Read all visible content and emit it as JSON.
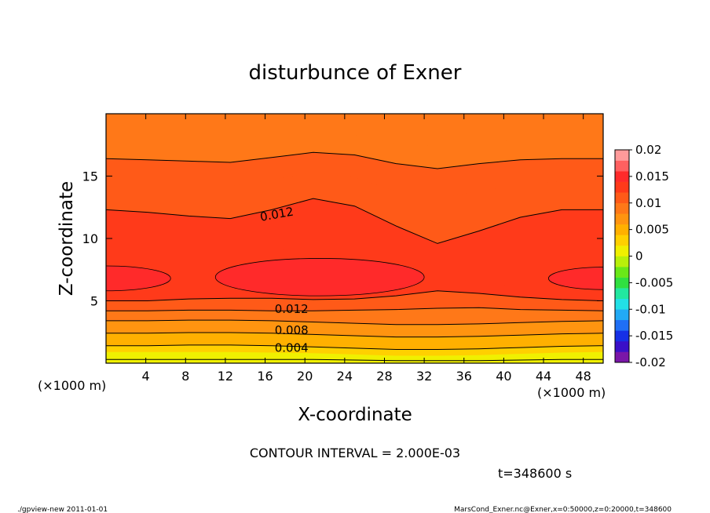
{
  "chart_data": {
    "type": "heatmap",
    "subtype": "filled-contour",
    "title": "disturbunce of Exner",
    "xlabel": "X-coordinate",
    "ylabel": "Z-coordinate",
    "x_unit_left": "(×1000 m)",
    "x_unit_right": "(×1000 m)",
    "xlim": [
      0,
      50
    ],
    "ylim": [
      0,
      20
    ],
    "x_ticks": [
      4,
      8,
      12,
      16,
      20,
      24,
      28,
      32,
      36,
      40,
      44,
      48
    ],
    "y_ticks": [
      5,
      10,
      15
    ],
    "colorbar": {
      "ticks": [
        "0.02",
        "0.015",
        "0.01",
        "0.005",
        "0",
        "-0.005",
        "-0.01",
        "-0.015",
        "-0.02"
      ],
      "range": [
        -0.02,
        0.02
      ],
      "level_colors": [
        "#7a16a8",
        "#3a10c8",
        "#1630e6",
        "#1f6ff5",
        "#22aaf5",
        "#22e0e6",
        "#22e8a0",
        "#30e040",
        "#6ae818",
        "#b8f00a",
        "#f0f000",
        "#ffd000",
        "#ffb000",
        "#ff9410",
        "#ff7818",
        "#ff5a18",
        "#ff3a1a",
        "#ff2a2a",
        "#ff6060",
        "#ff9a9a"
      ]
    },
    "contour_interval": "CONTOUR INTERVAL = 2.000E-03",
    "contour_labels": [
      "0.012",
      "0.012",
      "0.008",
      "0.004"
    ],
    "fill_bands": [
      {
        "level": 0.001,
        "z": [
          0.0,
          0.0,
          0.0,
          0.0,
          0.0,
          0.0,
          0.0,
          0.0,
          0.0,
          0.0,
          0.0,
          0.0,
          0.0
        ]
      },
      {
        "level": 0.002,
        "z": [
          0.3,
          0.3,
          0.3,
          0.3,
          0.3,
          0.3,
          0.25,
          0.2,
          0.2,
          0.2,
          0.25,
          0.3,
          0.3
        ]
      },
      {
        "level": 0.003,
        "z": [
          0.9,
          0.9,
          0.9,
          0.9,
          0.85,
          0.8,
          0.7,
          0.6,
          0.6,
          0.65,
          0.75,
          0.85,
          0.9
        ]
      },
      {
        "level": 0.004,
        "z": [
          1.4,
          1.4,
          1.45,
          1.45,
          1.4,
          1.3,
          1.2,
          1.1,
          1.1,
          1.15,
          1.25,
          1.35,
          1.4
        ]
      },
      {
        "level": 0.005,
        "z": [
          1.9,
          1.9,
          1.95,
          1.95,
          1.9,
          1.8,
          1.7,
          1.6,
          1.6,
          1.65,
          1.75,
          1.85,
          1.9
        ]
      },
      {
        "level": 0.006,
        "z": [
          2.4,
          2.4,
          2.45,
          2.45,
          2.4,
          2.3,
          2.2,
          2.1,
          2.1,
          2.15,
          2.25,
          2.35,
          2.4
        ]
      },
      {
        "level": 0.007,
        "z": [
          2.9,
          2.9,
          2.95,
          2.95,
          2.9,
          2.8,
          2.7,
          2.6,
          2.6,
          2.65,
          2.75,
          2.85,
          2.9
        ]
      },
      {
        "level": 0.008,
        "z": [
          3.4,
          3.4,
          3.45,
          3.45,
          3.4,
          3.3,
          3.2,
          3.1,
          3.1,
          3.15,
          3.25,
          3.35,
          3.4
        ]
      },
      {
        "level": 0.009,
        "z": [
          3.8,
          3.8,
          3.85,
          3.85,
          3.8,
          3.75,
          3.7,
          3.6,
          3.6,
          3.65,
          3.7,
          3.75,
          3.8
        ]
      },
      {
        "level": 0.01,
        "z": [
          4.2,
          4.2,
          4.25,
          4.25,
          4.2,
          4.2,
          4.25,
          4.3,
          4.4,
          4.45,
          4.3,
          4.25,
          4.2
        ]
      },
      {
        "level": 0.011,
        "z": [
          4.6,
          4.6,
          4.7,
          4.8,
          4.8,
          4.7,
          4.75,
          4.9,
          5.2,
          5.1,
          4.9,
          4.7,
          4.6
        ]
      },
      {
        "level": 0.012,
        "z": [
          5.0,
          5.0,
          5.15,
          5.2,
          5.2,
          5.1,
          5.15,
          5.4,
          5.8,
          5.6,
          5.3,
          5.1,
          5.0
        ]
      },
      {
        "level": 0.013,
        "z": [
          5.5,
          5.6,
          6.0,
          6.0,
          6.0,
          5.9,
          6.0,
          6.3,
          6.9,
          6.5,
          6.0,
          5.7,
          5.5
        ]
      },
      {
        "level": 0.014,
        "z": [
          20,
          20,
          20,
          20,
          20,
          20,
          20,
          20,
          20,
          20,
          20,
          20,
          20
        ]
      }
    ],
    "top_bands": [
      {
        "level": 0.013,
        "z": [
          8.4,
          8.3,
          8.6,
          8.8,
          9.0,
          9.3,
          9.3,
          9.0,
          8.5,
          8.3,
          8.2,
          8.3,
          8.4
        ]
      },
      {
        "level": 0.012,
        "z": [
          12.3,
          12.1,
          11.8,
          11.6,
          12.3,
          13.2,
          12.6,
          11.0,
          9.6,
          10.6,
          11.7,
          12.3,
          12.3
        ]
      },
      {
        "level": 0.011,
        "z": [
          14.6,
          14.5,
          14.3,
          14.2,
          14.7,
          15.3,
          14.9,
          13.8,
          13.2,
          13.8,
          14.3,
          14.6,
          14.6
        ]
      },
      {
        "level": 0.01,
        "z": [
          16.4,
          16.3,
          16.2,
          16.1,
          16.5,
          16.9,
          16.7,
          16.0,
          15.6,
          16.0,
          16.3,
          16.4,
          16.4
        ]
      },
      {
        "level": 0.009,
        "z": [
          18.0,
          17.9,
          17.8,
          17.9,
          18.3,
          18.6,
          18.3,
          17.6,
          17.4,
          17.7,
          17.9,
          18.0,
          18.0
        ]
      }
    ],
    "blobs": [
      {
        "cx": 0,
        "cz": 6.8,
        "rx": 6.5,
        "rz": 1.0
      },
      {
        "cx": 21.5,
        "cz": 6.9,
        "rx": 10.5,
        "rz": 1.5
      },
      {
        "cx": 50,
        "cz": 6.8,
        "rx": 5.5,
        "rz": 0.9
      }
    ]
  },
  "footer": {
    "time_label": "t=348600 s",
    "left_note": "./gpview-new 2011-01-01",
    "right_note": "MarsCond_Exner.nc@Exner,x=0:50000,z=0:20000,t=348600"
  }
}
